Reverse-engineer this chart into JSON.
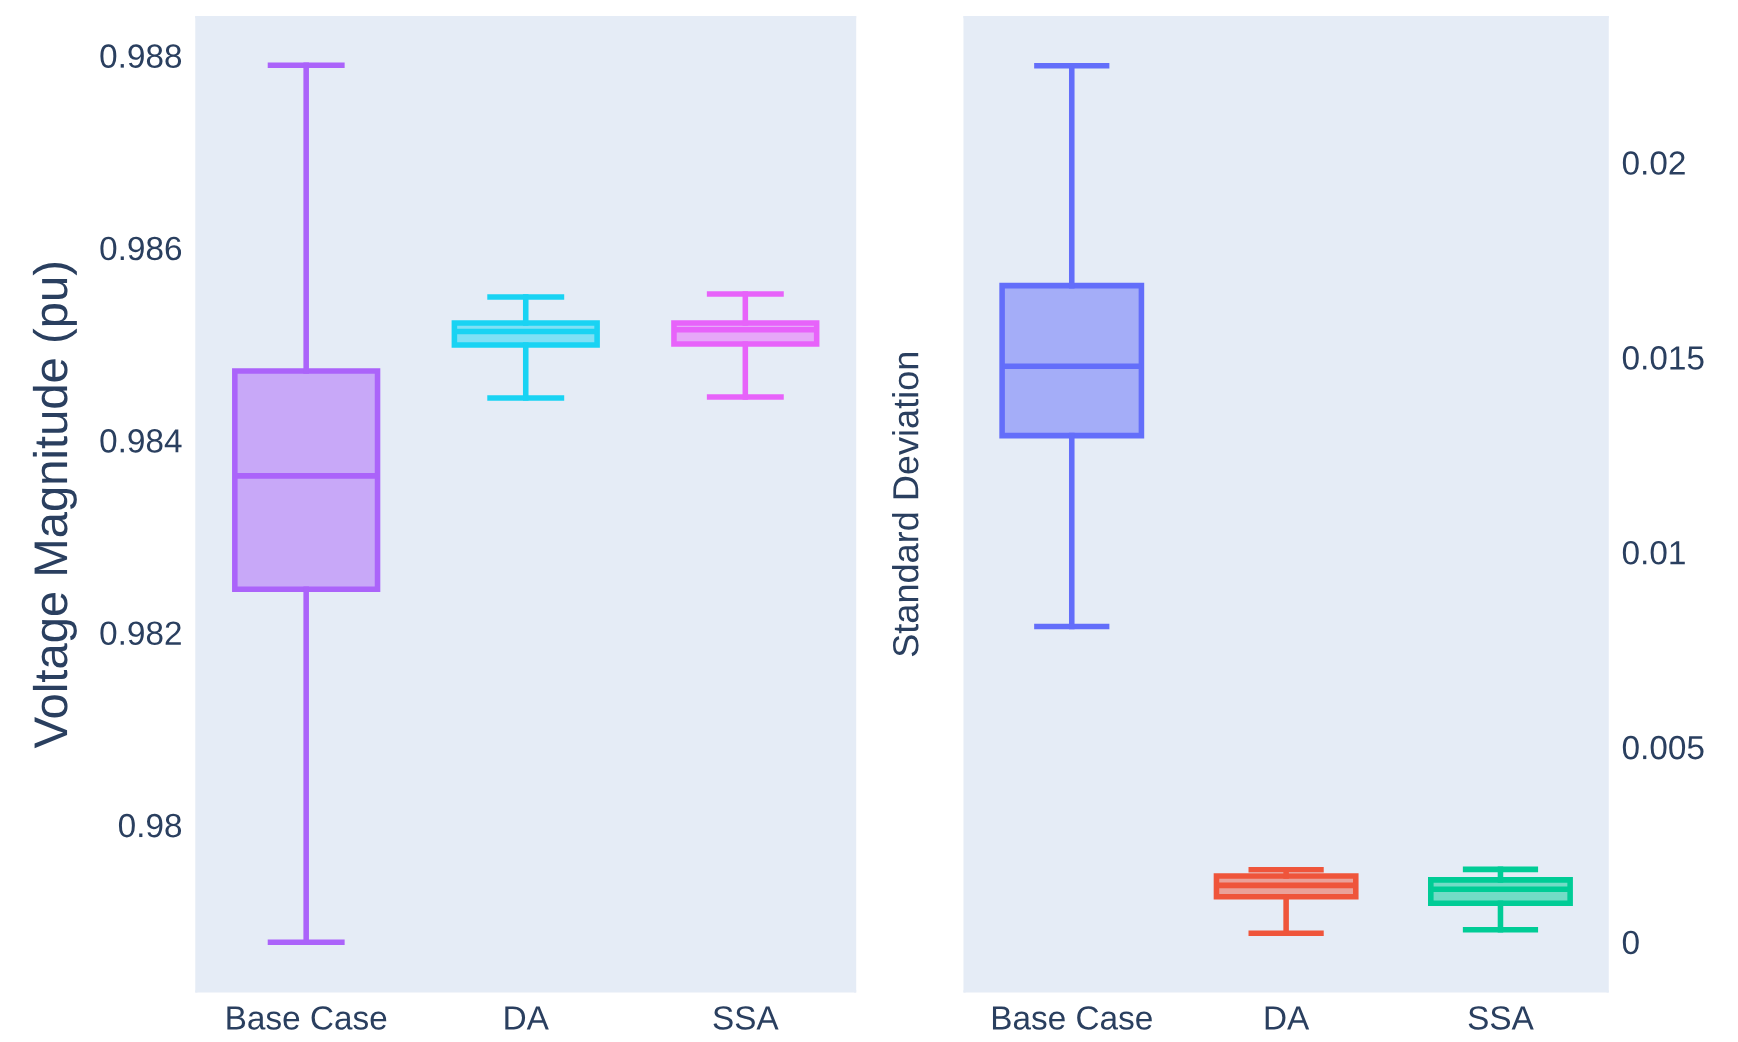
{
  "chart_data": [
    {
      "type": "box",
      "ylabel": "Voltage Magnitude (pu)",
      "categories": [
        "Base Case",
        "DA",
        "SSA"
      ],
      "colors": [
        "#ab63fa",
        "#19d3f3",
        "#e763fa"
      ],
      "boxes": [
        {
          "low": 0.97878,
          "q1": 0.98245,
          "median": 0.98363,
          "q3": 0.98472,
          "high": 0.9879
        },
        {
          "low": 0.98444,
          "q1": 0.98499,
          "median": 0.98513,
          "q3": 0.98522,
          "high": 0.98549
        },
        {
          "low": 0.98445,
          "q1": 0.985,
          "median": 0.98515,
          "q3": 0.98522,
          "high": 0.98552
        }
      ],
      "ylim": [
        0.97827,
        0.9884
      ],
      "yticks": [
        0.98,
        0.982,
        0.984,
        0.986,
        0.988
      ],
      "grid": false
    },
    {
      "type": "box",
      "ylabel": "Standard Deviation",
      "categories": [
        "Base Case",
        "DA",
        "SSA"
      ],
      "colors": [
        "#636efa",
        "#ef553b",
        "#00cc96"
      ],
      "boxes": [
        {
          "low": 0.00809,
          "q1": 0.01299,
          "median": 0.01477,
          "q3": 0.01684,
          "high": 0.02248
        },
        {
          "low": 0.00022,
          "q1": 0.00116,
          "median": 0.00145,
          "q3": 0.00169,
          "high": 0.00185
        },
        {
          "low": 0.00031,
          "q1": 0.00099,
          "median": 0.00135,
          "q3": 0.00159,
          "high": 0.00186
        }
      ],
      "ylim": [
        -0.00127,
        0.02373
      ],
      "yticks": [
        0,
        0.005,
        0.01,
        0.015,
        0.02
      ],
      "grid": false
    }
  ]
}
